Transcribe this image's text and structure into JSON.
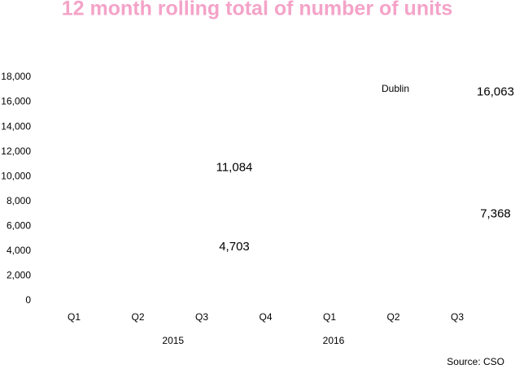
{
  "chart_data": {
    "type": "line",
    "title": "12 month rolling total of number of units",
    "categories": [
      "Q1",
      "Q2",
      "Q3",
      "Q4",
      "Q1",
      "Q2",
      "Q3"
    ],
    "groups": [
      {
        "label": "2015",
        "size": 4
      },
      {
        "label": "2016",
        "size": 3
      }
    ],
    "series": [
      {
        "name": "Dublin",
        "values": [
          null,
          null,
          11084,
          null,
          null,
          null,
          16063
        ],
        "value_labels": [
          null,
          null,
          "11,084",
          null,
          null,
          null,
          "16,063"
        ]
      },
      {
        "values": [
          null,
          null,
          4703,
          null,
          null,
          null,
          7368
        ],
        "value_labels": [
          null,
          null,
          "4,703",
          null,
          null,
          null,
          "7,368"
        ]
      }
    ],
    "ylim": [
      0,
      18000
    ],
    "yticks": [
      0,
      {
        "value": 2000,
        "label": "2,000"
      },
      {
        "value": 4000,
        "label": "4,000"
      },
      {
        "value": 6000,
        "label": "6,000"
      },
      {
        "value": 8000,
        "label": "8,000"
      },
      {
        "value": 10000,
        "label": "10,000"
      },
      {
        "value": 12000,
        "label": "12,000"
      },
      {
        "value": 14000,
        "label": "14,000"
      },
      {
        "value": 16000,
        "label": "16,000"
      },
      {
        "value": 18000,
        "label": "18,000"
      }
    ],
    "source": "Source: CSO"
  }
}
